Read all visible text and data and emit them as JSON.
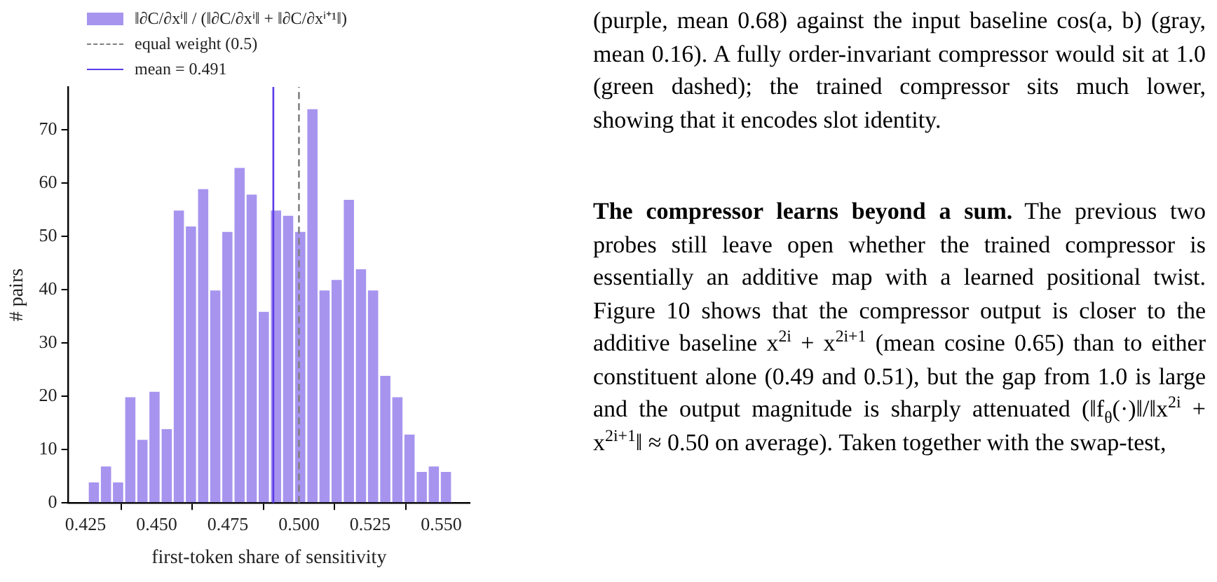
{
  "chart_data": {
    "type": "histogram",
    "xlabel": "first-token share of sensitivity",
    "ylabel": "# pairs",
    "bins": [
      0.4258,
      0.4301,
      0.4343,
      0.4386,
      0.4429,
      0.4471,
      0.4514,
      0.4557,
      0.4599,
      0.4642,
      0.4685,
      0.4727,
      0.477,
      0.4813,
      0.4855,
      0.4898,
      0.4941,
      0.4983,
      0.5026,
      0.5069,
      0.5111,
      0.5154,
      0.5197,
      0.5239,
      0.5282,
      0.5325,
      0.5367,
      0.541,
      0.5453,
      0.5495,
      0.5538
    ],
    "series": [
      {
        "name": "‖∂C/∂xⁱ‖ / (‖∂C/∂xⁱ‖ + ‖∂C/∂xⁱ⁺¹‖)",
        "color": "#a794ef",
        "values": [
          4,
          7,
          4,
          20,
          12,
          21,
          14,
          55,
          52,
          59,
          40,
          51,
          63,
          58,
          36,
          55,
          54,
          51,
          74,
          40,
          42,
          57,
          44,
          40,
          24,
          20,
          13,
          6,
          7,
          6
        ]
      }
    ],
    "xlim": [
      0.419,
      0.56
    ],
    "ylim": [
      0,
      78
    ],
    "xticks": [
      {
        "value": 0.425,
        "label": "0.425"
      },
      {
        "value": 0.45,
        "label": "0.450"
      },
      {
        "value": 0.475,
        "label": "0.475"
      },
      {
        "value": 0.5,
        "label": "0.500"
      },
      {
        "value": 0.525,
        "label": "0.525"
      },
      {
        "value": 0.55,
        "label": "0.550"
      }
    ],
    "yticks": [
      0,
      10,
      20,
      30,
      40,
      50,
      60,
      70
    ],
    "ref_lines": [
      {
        "axis": "x",
        "value": 0.5,
        "label": "equal weight (0.5)",
        "color": "#808080",
        "line_style": "dashed"
      },
      {
        "axis": "x",
        "value": 0.491,
        "label": "mean = 0.491",
        "color": "#5a3ce6",
        "line_style": "solid"
      }
    ],
    "legend": "top left",
    "annotations": [
      "(purple, mean 0.68) against the input baseline cos(a, b) (gray, mean 0.16). A fully order-invariant compressor would sit at 1.0 (green dashed); the trained compressor sits much lower, showing that it encodes slot identity.",
      "The compressor learns beyond a sum.",
      "The previous two probes still leave open whether the trained compressor is essentially an additive map with a learned positional twist. Figure 10 shows that the compressor output is closer to the additive baseline x$^{2i}$ + x$^{2i+1}$ (mean cosine 0.65) than to either constituent alone (0.49 and 0.51), but the gap from 1.0 is large and the output magnitude is sharply attenuated (‖f$_{θ}$(·)‖/‖x$^{2i}$ + x$^{2i+1}$‖ ≈ 0.50 on average). Taken together with the swap-test,"
    ]
  }
}
